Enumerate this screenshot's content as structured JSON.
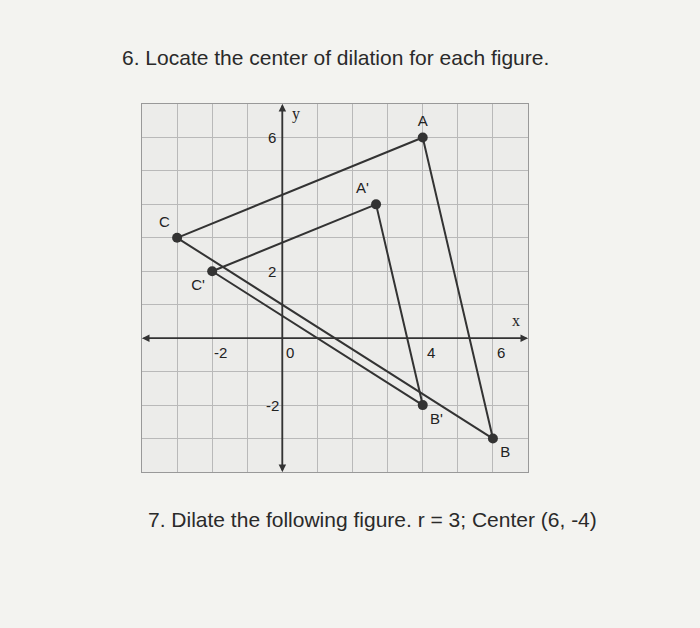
{
  "questions": [
    {
      "number": "6.",
      "text": "Locate the center of dilation for each figure."
    },
    {
      "number": "7.",
      "text": "Dilate the following figure. r = 3; Center (6, -4)"
    }
  ],
  "chart_data": {
    "type": "scatter",
    "xlabel": "x",
    "ylabel": "y",
    "xlim": [
      -4,
      7
    ],
    "ylim": [
      -4,
      7
    ],
    "xticks": [
      -2,
      0,
      4,
      6
    ],
    "yticks": [
      -2,
      2,
      6
    ],
    "grid": true,
    "marker": "circle",
    "color": "#333333",
    "figures": [
      {
        "vertices": [
          "A",
          "B",
          "C"
        ],
        "x": [
          4,
          6,
          -3
        ],
        "y": [
          6,
          -3,
          3
        ]
      },
      {
        "vertices": [
          "A'",
          "B'",
          "C'"
        ],
        "x": [
          2.67,
          4,
          -2
        ],
        "y": [
          4,
          -2,
          2
        ]
      }
    ]
  }
}
